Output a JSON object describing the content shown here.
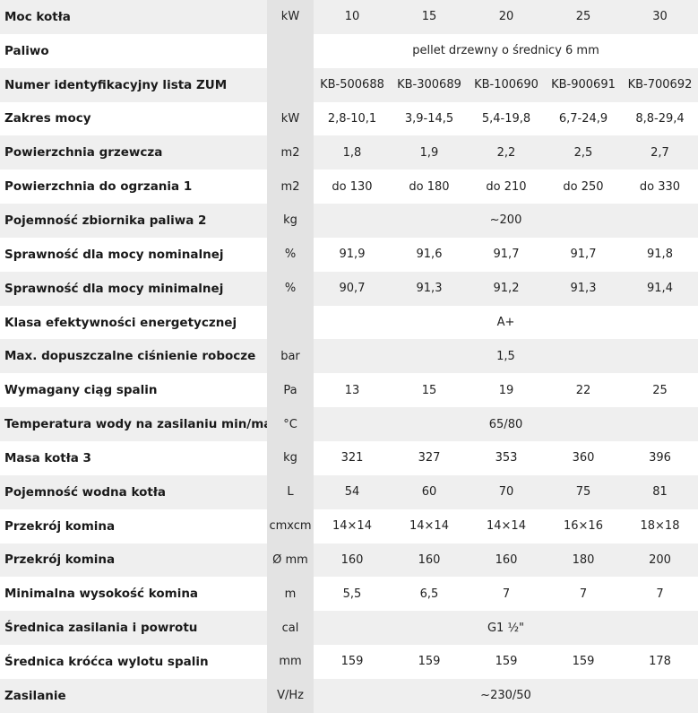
{
  "rows": [
    {
      "label": "Moc kotła",
      "unit": "kW",
      "values": [
        "10",
        "15",
        "20",
        "25",
        "30"
      ]
    },
    {
      "label": "Paliwo",
      "unit": "",
      "span": "pellet drzewny o średnicy 6 mm"
    },
    {
      "label": "Numer identyfikacyjny lista ZUM",
      "unit": "",
      "values": [
        "KB-500688",
        "KB-300689",
        "KB-100690",
        "KB-900691",
        "KB-700692"
      ]
    },
    {
      "label": "Zakres mocy",
      "unit": "kW",
      "values": [
        "2,8-10,1",
        "3,9-14,5",
        "5,4-19,8",
        "6,7-24,9",
        "8,8-29,4"
      ]
    },
    {
      "label": "Powierzchnia grzewcza",
      "unit": "m2",
      "values": [
        "1,8",
        "1,9",
        "2,2",
        "2,5",
        "2,7"
      ]
    },
    {
      "label": "Powierzchnia do ogrzania 1",
      "unit": "m2",
      "values": [
        "do 130",
        "do 180",
        "do 210",
        "do 250",
        "do 330"
      ]
    },
    {
      "label": "Pojemność zbiornika paliwa 2",
      "unit": "kg",
      "span": "~200"
    },
    {
      "label": "Sprawność dla mocy nominalnej",
      "unit": "%",
      "values": [
        "91,9",
        "91,6",
        "91,7",
        "91,7",
        "91,8"
      ]
    },
    {
      "label": "Sprawność dla mocy minimalnej",
      "unit": "%",
      "values": [
        "90,7",
        "91,3",
        "91,2",
        "91,3",
        "91,4"
      ]
    },
    {
      "label": "Klasa efektywności energetycznej",
      "unit": "",
      "span": "A+"
    },
    {
      "label": "Max. dopuszczalne ciśnienie robocze",
      "unit": "bar",
      "span": "1,5"
    },
    {
      "label": "Wymagany ciąg spalin",
      "unit": "Pa",
      "values": [
        "13",
        "15",
        "19",
        "22",
        "25"
      ]
    },
    {
      "label": "Temperatura wody na zasilaniu min/max.",
      "unit": "°C",
      "span": "65/80"
    },
    {
      "label": "Masa kotła 3",
      "unit": "kg",
      "values": [
        "321",
        "327",
        "353",
        "360",
        "396"
      ]
    },
    {
      "label": "Pojemność wodna kotła",
      "unit": "L",
      "values": [
        "54",
        "60",
        "70",
        "75",
        "81"
      ]
    },
    {
      "label": "Przekrój komina",
      "unit": "cmxcm",
      "values": [
        "14×14",
        "14×14",
        "14×14",
        "16×16",
        "18×18"
      ]
    },
    {
      "label": "Przekrój komina",
      "unit": "Ø mm",
      "values": [
        "160",
        "160",
        "160",
        "180",
        "200"
      ]
    },
    {
      "label": "Minimalna wysokość komina",
      "unit": "m",
      "values": [
        "5,5",
        "6,5",
        "7",
        "7",
        "7"
      ]
    },
    {
      "label": "Średnica zasilania i powrotu",
      "unit": "cal",
      "span": "G1 ½\""
    },
    {
      "label": "Średnica króćca wylotu spalin",
      "unit": "mm",
      "values": [
        "159",
        "159",
        "159",
        "159",
        "178"
      ]
    },
    {
      "label": "Zasilanie",
      "unit": "V/Hz",
      "span": "~230/50"
    }
  ]
}
